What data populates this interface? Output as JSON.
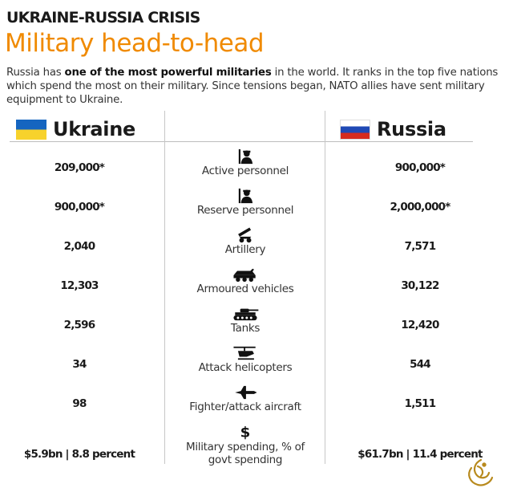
{
  "kicker": "UKRAINE-RUSSIA CRISIS",
  "headline": "Military head-to-head",
  "intro": {
    "before": "Russia has ",
    "bold": "one of the most powerful militaries",
    "after": " in the world. It ranks in the top five nations which spend the most on their military. Since tensions began, NATO allies have sent military equipment to Ukraine."
  },
  "countries": {
    "left": {
      "name": "Ukraine",
      "flag": "ukraine-flag",
      "colors": [
        "#1565c0",
        "#f7d22c"
      ]
    },
    "right": {
      "name": "Russia",
      "flag": "russia-flag",
      "colors": [
        "#ffffff",
        "#1f49b5",
        "#d52b1e"
      ]
    }
  },
  "chart_data": {
    "type": "table",
    "columns": [
      "Ukraine",
      "",
      "Russia"
    ],
    "rows": [
      {
        "category": "Active personnel",
        "icon": "soldier-icon",
        "ukraine": "209,000*",
        "russia": "900,000*"
      },
      {
        "category": "Reserve personnel",
        "icon": "soldier-icon",
        "ukraine": "900,000*",
        "russia": "2,000,000*"
      },
      {
        "category": "Artillery",
        "icon": "artillery-icon",
        "ukraine": "2,040",
        "russia": "7,571"
      },
      {
        "category": "Armoured vehicles",
        "icon": "armoured-vehicle-icon",
        "ukraine": "12,303",
        "russia": "30,122"
      },
      {
        "category": "Tanks",
        "icon": "tank-icon",
        "ukraine": "2,596",
        "russia": "12,420"
      },
      {
        "category": "Attack helicopters",
        "icon": "helicopter-icon",
        "ukraine": "34",
        "russia": "544"
      },
      {
        "category": "Fighter/attack aircraft",
        "icon": "fighter-jet-icon",
        "ukraine": "98",
        "russia": "1,511"
      },
      {
        "category": "Military spending, % of govt spending",
        "icon": "dollar-icon",
        "ukraine": "$5.9bn | 8.8 percent",
        "russia": "$61.7bn | 11.4 percent"
      }
    ]
  },
  "logo": "al-jazeera-logo-icon"
}
